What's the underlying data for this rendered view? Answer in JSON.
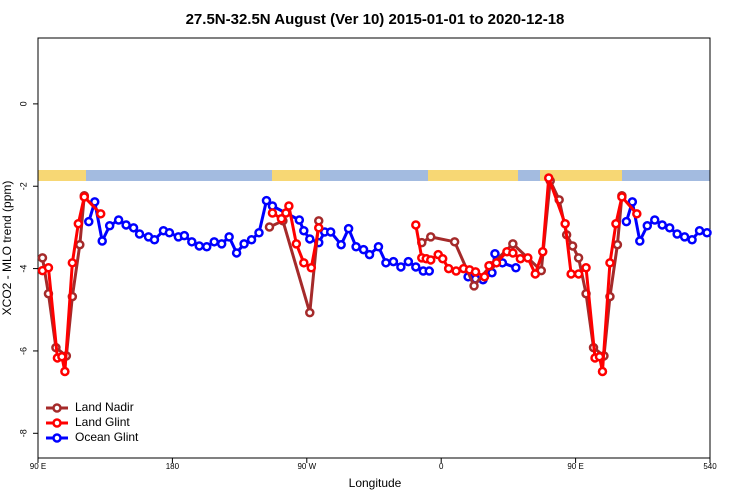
{
  "chart_data": {
    "type": "line",
    "title": "27.5N-32.5N August (Ver 10)   2015-01-01 to 2020-12-18",
    "xlabel": "Longitude",
    "ylabel": "XCO2 - MLO trend (ppm)",
    "xlim": [
      90,
      540
    ],
    "xticks": [
      {
        "value": 90,
        "label": "90 E"
      },
      180,
      {
        "value": 270,
        "label": "90 W"
      },
      {
        "value": 360,
        "label": "0"
      },
      {
        "value": 450,
        "label": "90 E"
      },
      540
    ],
    "ylim": [
      -8.6,
      1.6
    ],
    "yticks": [
      -8,
      -6,
      -4,
      -2,
      0
    ],
    "legend": "bottom-left",
    "series": [
      {
        "name": "Land Nadir",
        "color": "#a52a2a",
        "x": [
          93,
          97,
          102,
          109,
          113,
          118,
          121,
          null,
          245,
          254,
          272,
          278,
          null,
          347,
          353,
          369,
          382,
          393,
          408,
          427,
          433,
          439,
          444,
          448,
          452,
          457,
          462,
          469,
          473,
          478,
          481
        ],
        "values": [
          -3.74,
          -4.61,
          -5.92,
          -6.12,
          -4.68,
          -3.42,
          -2.23,
          null,
          -2.99,
          -2.84,
          -5.07,
          -2.84,
          null,
          -3.37,
          -3.23,
          -3.35,
          -4.42,
          -3.93,
          -3.4,
          -4.05,
          -1.87,
          -2.33,
          -3.18,
          -3.45,
          -3.74,
          -4.61,
          -5.92,
          -6.12,
          -4.68,
          -3.42,
          -2.23
        ]
      },
      {
        "name": "Land Glint",
        "color": "#ff0000",
        "x": [
          93,
          97,
          103,
          106,
          108,
          113,
          117,
          121,
          132,
          null,
          247,
          253,
          256,
          258,
          263,
          268,
          273,
          278,
          null,
          343,
          347,
          350,
          353,
          358,
          361,
          365,
          370,
          375,
          379,
          383,
          389,
          392,
          397,
          404,
          408,
          413,
          418,
          423,
          428,
          432,
          443,
          447,
          452,
          457,
          463,
          466,
          468,
          473,
          477,
          481,
          491
        ],
        "values": [
          -4.05,
          -3.98,
          -6.17,
          -6.14,
          -6.5,
          -3.86,
          -2.91,
          -2.26,
          -2.67,
          null,
          -2.65,
          -2.79,
          -2.65,
          -2.48,
          -3.4,
          -3.86,
          -3.98,
          -3.01,
          null,
          -2.94,
          -3.74,
          -3.76,
          -3.79,
          -3.66,
          -3.76,
          -4.0,
          -4.06,
          -4.0,
          -4.03,
          -4.08,
          -4.2,
          -3.93,
          -3.86,
          -3.59,
          -3.62,
          -3.76,
          -3.74,
          -4.13,
          -3.59,
          -1.8,
          -2.91,
          -4.13,
          -4.13,
          -3.98,
          -6.17,
          -6.14,
          -6.5,
          -3.86,
          -2.91,
          -2.26,
          -2.67
        ]
      },
      {
        "name": "Ocean Glint",
        "color": "#0000ff",
        "x": [
          124,
          128,
          133,
          138,
          144,
          149,
          154,
          158,
          164,
          168,
          174,
          178,
          184,
          188,
          193,
          198,
          203,
          208,
          213,
          218,
          223,
          228,
          233,
          238,
          243,
          247,
          265,
          268,
          272,
          278,
          282,
          286,
          293,
          298,
          303,
          308,
          312,
          318,
          323,
          328,
          333,
          338,
          343,
          348,
          352,
          null,
          378,
          383,
          388,
          394,
          396,
          401,
          410,
          null,
          484,
          488,
          493,
          498,
          503,
          508,
          513,
          518,
          523,
          528,
          533,
          538
        ],
        "values": [
          -2.86,
          -2.38,
          -3.33,
          -2.96,
          -2.82,
          -2.94,
          -3.01,
          -3.16,
          -3.23,
          -3.3,
          -3.08,
          -3.13,
          -3.23,
          -3.2,
          -3.35,
          -3.45,
          -3.47,
          -3.35,
          -3.4,
          -3.23,
          -3.62,
          -3.4,
          -3.3,
          -3.13,
          -2.35,
          -2.48,
          -2.82,
          -3.08,
          -3.28,
          -3.37,
          -3.11,
          -3.11,
          -3.42,
          -3.03,
          -3.47,
          -3.54,
          -3.66,
          -3.47,
          -3.86,
          -3.83,
          -3.96,
          -3.83,
          -3.96,
          -4.06,
          -4.06,
          null,
          -4.2,
          -4.25,
          -4.27,
          -4.1,
          -3.64,
          -3.86,
          -3.98,
          null,
          -2.86,
          -2.38,
          -3.33,
          -2.96,
          -2.82,
          -2.94,
          -3.01,
          -3.16,
          -3.23,
          -3.3,
          -3.08,
          -3.13
        ]
      }
    ]
  }
}
